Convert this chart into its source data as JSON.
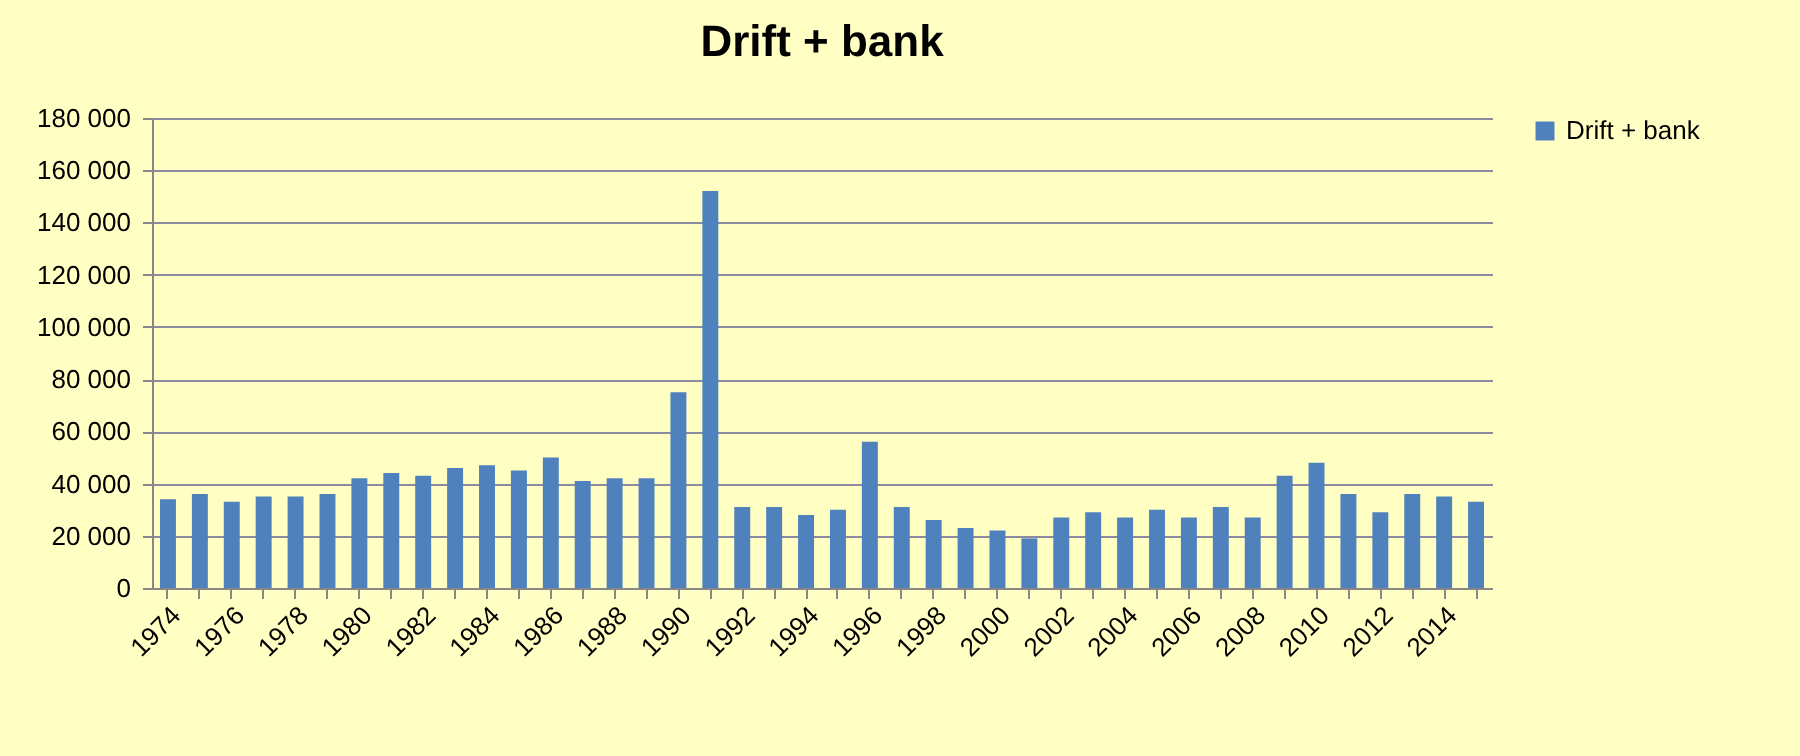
{
  "chart_data": {
    "type": "bar",
    "title": "Drift + bank",
    "categories": [
      "1974",
      null,
      "1976",
      null,
      "1978",
      null,
      "1980",
      null,
      "1982",
      null,
      "1984",
      null,
      "1986",
      null,
      "1988",
      null,
      "1990",
      null,
      "1992",
      null,
      "1994",
      null,
      "1996",
      null,
      "1998",
      null,
      "2000",
      null,
      "2002",
      null,
      "2004",
      null,
      "2006",
      null,
      "2008",
      null,
      "2010",
      null,
      "2012",
      null,
      "2014",
      null
    ],
    "series": [
      {
        "name": "Drift + bank",
        "color": "#4f81bd",
        "values": [
          34000,
          36000,
          33000,
          35000,
          35000,
          36000,
          42000,
          44000,
          43000,
          46000,
          47000,
          45000,
          50000,
          41000,
          42000,
          42000,
          75000,
          152000,
          31000,
          31000,
          28000,
          30000,
          56000,
          31000,
          26000,
          23000,
          22000,
          19000,
          27000,
          29000,
          27000,
          30000,
          27000,
          31000,
          27000,
          43000,
          48000,
          36000,
          29000,
          36000,
          35000,
          33000
        ]
      }
    ],
    "ylim": [
      0,
      180000
    ],
    "yticks": [
      {
        "value": 0,
        "label": "0"
      },
      {
        "value": 20000,
        "label": "20 000"
      },
      {
        "value": 40000,
        "label": "40 000"
      },
      {
        "value": 60000,
        "label": "60 000"
      },
      {
        "value": 80000,
        "label": "80 000"
      },
      {
        "value": 100000,
        "label": "100 000"
      },
      {
        "value": 120000,
        "label": "120 000"
      },
      {
        "value": 140000,
        "label": "140 000"
      },
      {
        "value": 160000,
        "label": "160 000"
      },
      {
        "value": 180000,
        "label": "180 000"
      }
    ],
    "grid": "y",
    "legend": "right"
  }
}
